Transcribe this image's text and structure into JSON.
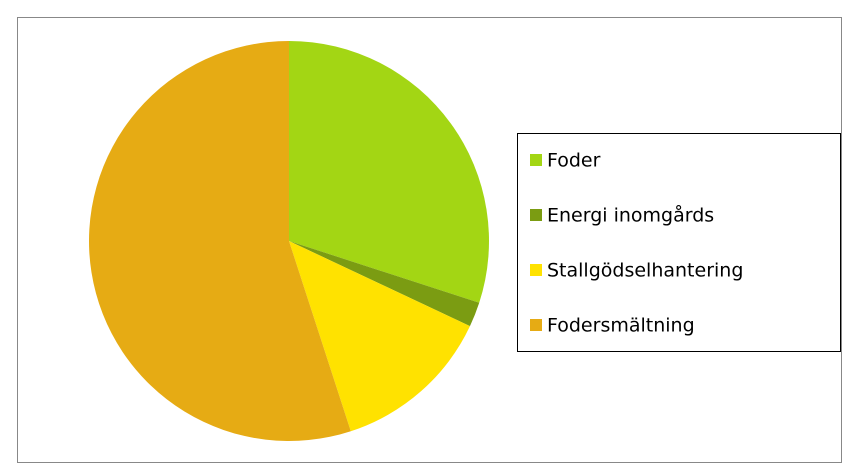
{
  "chart_data": {
    "type": "pie",
    "categories": [
      "Foder",
      "Energi inomgårds",
      "Stallgödselhantering",
      "Fodersmältning"
    ],
    "values": [
      30,
      2,
      13,
      55
    ],
    "colors": [
      "#a3d614",
      "#7b9c12",
      "#ffe200",
      "#e6ab14"
    ],
    "legend": "right"
  }
}
